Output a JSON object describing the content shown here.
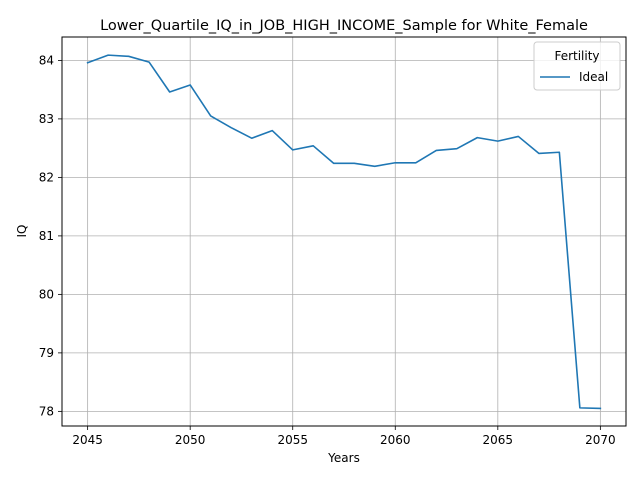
{
  "chart_data": {
    "type": "line",
    "title": "Lower_Quartile_IQ_in_JOB_HIGH_INCOME_Sample for White_Female",
    "xlabel": "Years",
    "ylabel": "IQ",
    "xlim": [
      2043.75,
      2071.25
    ],
    "ylim": [
      77.75,
      84.4
    ],
    "x_ticks": [
      2045,
      2050,
      2055,
      2060,
      2065,
      2070
    ],
    "y_ticks": [
      78,
      79,
      80,
      81,
      82,
      83,
      84
    ],
    "grid": true,
    "legend": {
      "title": "Fertility",
      "placement": "top-right"
    },
    "series": [
      {
        "name": "Ideal",
        "color": "#1f77b4",
        "x": [
          2045,
          2046,
          2047,
          2048,
          2049,
          2050,
          2051,
          2052,
          2053,
          2054,
          2055,
          2056,
          2057,
          2058,
          2059,
          2060,
          2061,
          2062,
          2063,
          2064,
          2065,
          2066,
          2067,
          2068,
          2069,
          2070
        ],
        "y": [
          83.96,
          84.09,
          84.07,
          83.97,
          83.46,
          83.58,
          83.05,
          82.85,
          82.67,
          82.8,
          82.47,
          82.54,
          82.24,
          82.24,
          82.19,
          82.25,
          82.25,
          82.46,
          82.49,
          82.68,
          82.62,
          82.7,
          82.41,
          82.43,
          78.06,
          78.05
        ]
      }
    ]
  }
}
